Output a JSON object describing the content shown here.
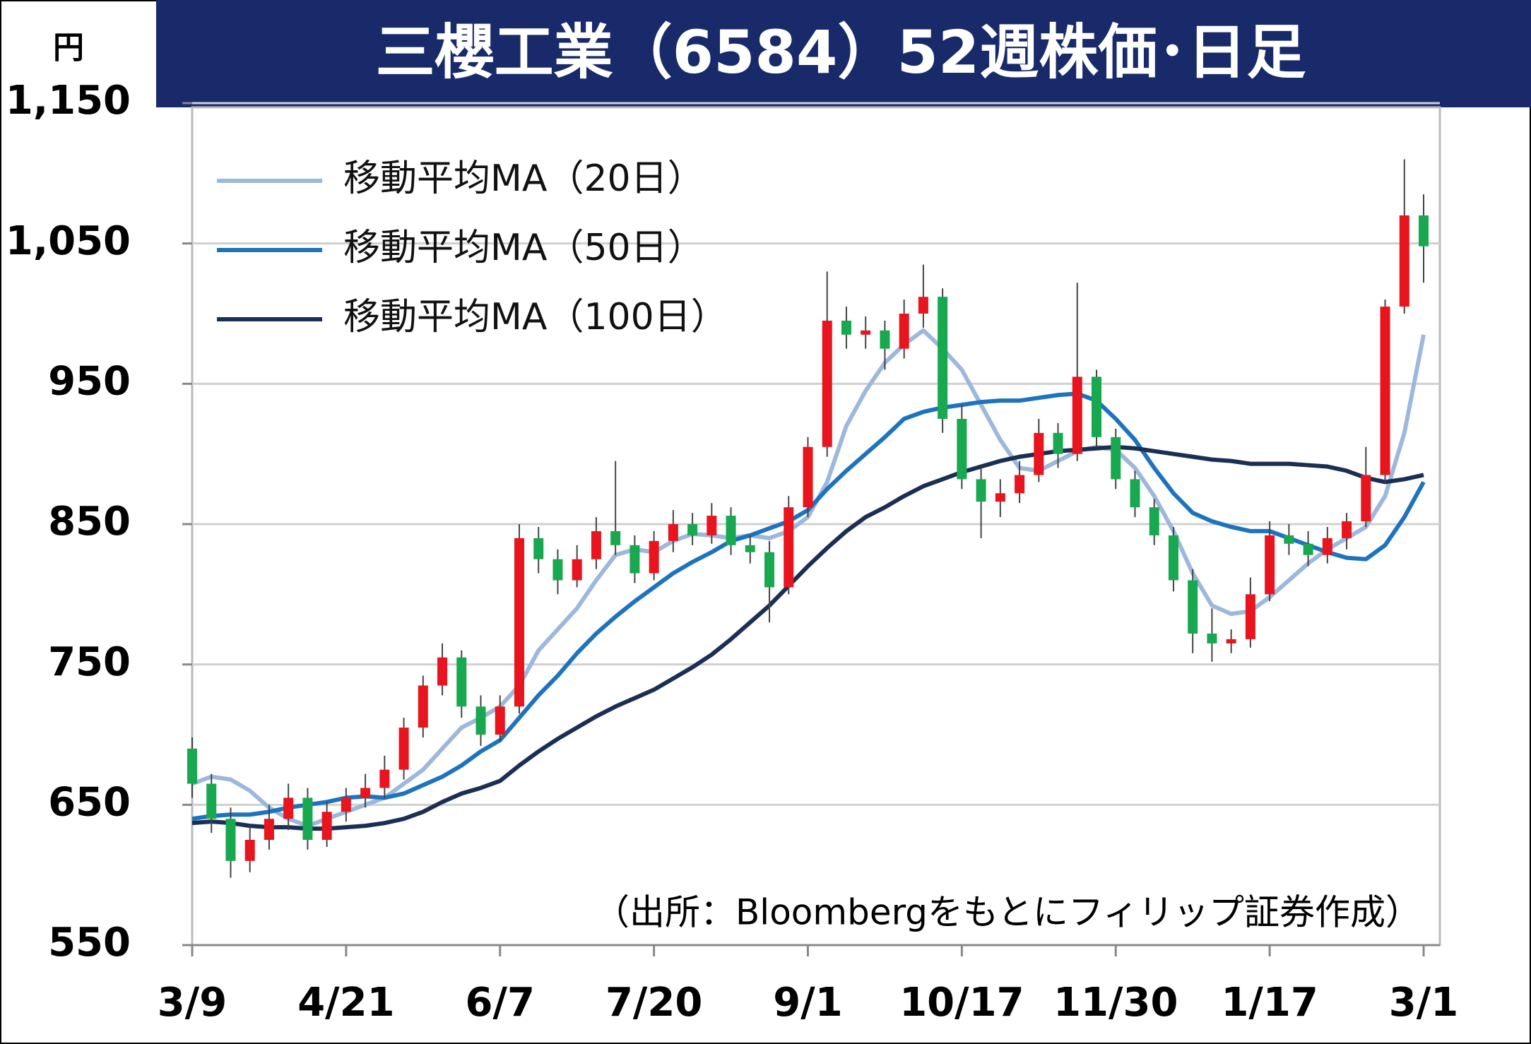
{
  "chart_data": {
    "type": "candlestick",
    "title": "三櫻工業（6584）52週株価･日足",
    "y_unit": "円",
    "source": "（出所：Bloombergをもとにフィリップ証券作成）",
    "up_color": "#e8141e",
    "down_color": "#18a84f",
    "grid": true,
    "legend": "upper left",
    "xlim": [
      0,
      64
    ],
    "xticks": [
      {
        "value": 0,
        "label": "3/9"
      },
      {
        "value": 8,
        "label": "4/21"
      },
      {
        "value": 16,
        "label": "6/7"
      },
      {
        "value": 24,
        "label": "7/20"
      },
      {
        "value": 32,
        "label": "9/1"
      },
      {
        "value": 40,
        "label": "10/17"
      },
      {
        "value": 48,
        "label": "11/30"
      },
      {
        "value": 56,
        "label": "1/17"
      },
      {
        "value": 64,
        "label": "3/1"
      }
    ],
    "ylim": [
      550,
      1150
    ],
    "yticks": [
      550,
      650,
      750,
      850,
      950,
      {
        "value": 1050,
        "label": "1,050"
      },
      {
        "value": 1150,
        "label": "1,150"
      }
    ],
    "ohlc": {
      "open": [
        690,
        665,
        640,
        610,
        625,
        640,
        655,
        625,
        645,
        655,
        662,
        675,
        705,
        735,
        755,
        720,
        700,
        720,
        840,
        825,
        810,
        825,
        845,
        835,
        815,
        838,
        850,
        842,
        856,
        835,
        830,
        805,
        862,
        905,
        995,
        985,
        988,
        975,
        1000,
        1012,
        925,
        882,
        866,
        872,
        885,
        915,
        900,
        955,
        912,
        882,
        862,
        842,
        810,
        772,
        765,
        768,
        800,
        842,
        836,
        828,
        840,
        852,
        885,
        1005,
        1070
      ],
      "high": [
        698,
        672,
        648,
        635,
        650,
        665,
        662,
        652,
        662,
        672,
        685,
        712,
        742,
        765,
        760,
        728,
        728,
        850,
        848,
        832,
        835,
        855,
        895,
        842,
        845,
        860,
        858,
        865,
        862,
        842,
        838,
        870,
        912,
        1030,
        1005,
        998,
        995,
        1010,
        1035,
        1018,
        935,
        890,
        882,
        895,
        925,
        922,
        1022,
        960,
        918,
        888,
        868,
        848,
        818,
        790,
        775,
        812,
        852,
        850,
        845,
        848,
        858,
        905,
        1010,
        1110,
        1085
      ],
      "low": [
        655,
        630,
        598,
        602,
        618,
        632,
        618,
        620,
        638,
        648,
        655,
        668,
        698,
        728,
        712,
        692,
        695,
        715,
        815,
        800,
        805,
        818,
        828,
        808,
        810,
        830,
        835,
        836,
        828,
        822,
        780,
        800,
        855,
        898,
        975,
        975,
        960,
        968,
        990,
        915,
        875,
        840,
        855,
        865,
        880,
        890,
        895,
        905,
        875,
        855,
        835,
        802,
        758,
        752,
        758,
        762,
        795,
        828,
        820,
        822,
        832,
        848,
        880,
        1000,
        1022
      ],
      "close": [
        665,
        640,
        610,
        625,
        640,
        655,
        625,
        645,
        655,
        662,
        675,
        705,
        735,
        755,
        720,
        700,
        720,
        840,
        825,
        810,
        825,
        845,
        835,
        815,
        838,
        850,
        842,
        856,
        835,
        830,
        805,
        862,
        905,
        995,
        985,
        988,
        975,
        1000,
        1012,
        925,
        882,
        866,
        872,
        885,
        915,
        900,
        955,
        912,
        882,
        862,
        842,
        810,
        772,
        765,
        768,
        800,
        842,
        836,
        828,
        840,
        852,
        885,
        1005,
        1070,
        1048
      ]
    },
    "series": [
      {
        "name": "移動平均MA（20日）",
        "color": "#9db8dc",
        "values": [
          665,
          670,
          668,
          660,
          648,
          640,
          635,
          640,
          645,
          650,
          655,
          665,
          675,
          690,
          705,
          712,
          720,
          735,
          760,
          775,
          790,
          810,
          828,
          832,
          830,
          838,
          843,
          842,
          840,
          842,
          840,
          845,
          855,
          880,
          920,
          945,
          965,
          978,
          988,
          975,
          960,
          935,
          910,
          890,
          888,
          895,
          902,
          905,
          903,
          890,
          870,
          845,
          815,
          792,
          786,
          788,
          798,
          810,
          822,
          832,
          840,
          848,
          870,
          915,
          985
        ]
      },
      {
        "name": "移動平均MA（50日）",
        "color": "#1e73be",
        "values": [
          640,
          642,
          643,
          643,
          645,
          648,
          650,
          652,
          655,
          656,
          655,
          658,
          664,
          670,
          678,
          688,
          696,
          712,
          728,
          742,
          758,
          772,
          784,
          795,
          805,
          815,
          823,
          830,
          838,
          842,
          847,
          852,
          860,
          875,
          888,
          900,
          912,
          925,
          930,
          933,
          935,
          937,
          938,
          938,
          940,
          942,
          943,
          938,
          925,
          910,
          890,
          872,
          858,
          852,
          848,
          845,
          845,
          840,
          835,
          830,
          826,
          825,
          835,
          855,
          880
        ]
      },
      {
        "name": "移動平均MA（100日）",
        "color": "#1b2f55",
        "values": [
          637,
          638,
          637,
          635,
          634,
          634,
          633,
          633,
          634,
          635,
          637,
          640,
          645,
          652,
          658,
          662,
          667,
          678,
          688,
          697,
          705,
          713,
          720,
          726,
          732,
          740,
          748,
          757,
          768,
          780,
          792,
          806,
          820,
          833,
          845,
          855,
          862,
          870,
          877,
          882,
          887,
          891,
          895,
          898,
          900,
          902,
          903,
          904,
          905,
          904,
          902,
          900,
          898,
          896,
          895,
          893,
          893,
          893,
          892,
          891,
          888,
          883,
          880,
          882,
          885
        ]
      }
    ]
  }
}
